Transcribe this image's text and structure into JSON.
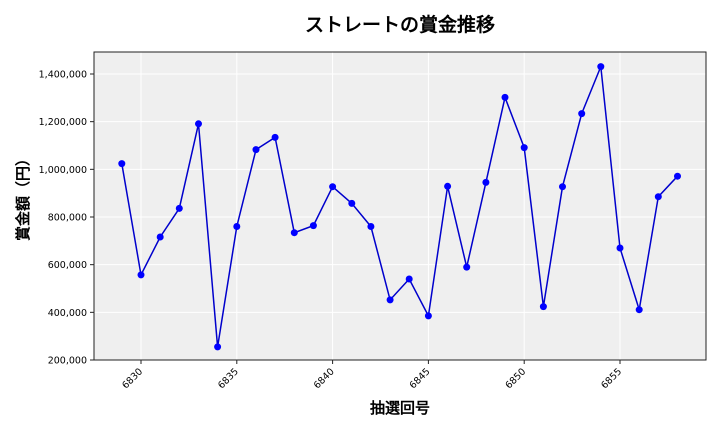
{
  "chart_data": {
    "type": "line",
    "title": "ストレートの賞金推移",
    "xlabel": "抽選回号",
    "ylabel": "賞金額（円）",
    "x": [
      6829,
      6830,
      6831,
      6832,
      6833,
      6834,
      6835,
      6836,
      6837,
      6838,
      6839,
      6840,
      6841,
      6842,
      6843,
      6844,
      6845,
      6846,
      6847,
      6848,
      6849,
      6850,
      6851,
      6852,
      6853,
      6854,
      6855,
      6856,
      6857,
      6858
    ],
    "series": [
      {
        "name": "ストレート",
        "color": "#0000cc",
        "marker_color": "#0000ff",
        "values": [
          1024000,
          557000,
          716000,
          836000,
          1191000,
          255000,
          760000,
          1083000,
          1134000,
          734000,
          764000,
          927000,
          857000,
          760000,
          452000,
          540000,
          385000,
          929000,
          590000,
          945000,
          1302000,
          1091000,
          424000,
          927000,
          1234000,
          1431000,
          670000,
          411000,
          885000,
          971000
        ]
      }
    ],
    "xticks": [
      6830,
      6835,
      6840,
      6845,
      6850,
      6855
    ],
    "xtick_labels": [
      "6830",
      "6835",
      "6840",
      "6845",
      "6850",
      "6855"
    ],
    "yticks": [
      200000,
      400000,
      600000,
      800000,
      1000000,
      1200000,
      1400000
    ],
    "ytick_labels": [
      "200,000",
      "400,000",
      "600,000",
      "800,000",
      "1,000,000",
      "1,200,000",
      "1,400,000"
    ],
    "xlim": [
      6827.5,
      6859.5
    ],
    "ylim": [
      200000,
      1490000
    ],
    "grid": true,
    "legend": null,
    "background": "#efefef"
  }
}
